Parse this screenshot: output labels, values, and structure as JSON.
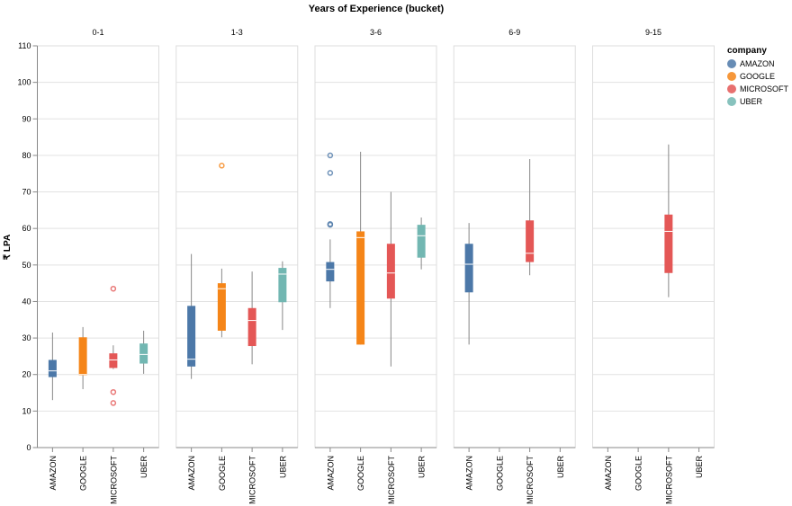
{
  "chart_data": {
    "type": "boxplot",
    "title": "Years of Experience (bucket)",
    "ylabel": "₹ LPA",
    "ylim": [
      0,
      110
    ],
    "yticks": [
      0,
      10,
      20,
      30,
      40,
      50,
      60,
      70,
      80,
      90,
      100,
      110
    ],
    "grid": true,
    "categories": [
      "AMAZON",
      "GOOGLE",
      "MICROSOFT",
      "UBER"
    ],
    "legend": {
      "title": "company",
      "placement": "right",
      "items": [
        {
          "name": "AMAZON",
          "color": "#4c78a8"
        },
        {
          "name": "GOOGLE",
          "color": "#f58518"
        },
        {
          "name": "MICROSOFT",
          "color": "#e45756"
        },
        {
          "name": "UBER",
          "color": "#72b7b2"
        }
      ]
    },
    "facets": [
      {
        "label": "0-1",
        "boxes": [
          {
            "company": "AMAZON",
            "min": 13,
            "q1": 19.3,
            "median": 21,
            "q3": 24,
            "max": 31.5,
            "outliers": []
          },
          {
            "company": "GOOGLE",
            "min": 16,
            "q1": 19.8,
            "median": 20,
            "q3": 30.2,
            "max": 33,
            "outliers": []
          },
          {
            "company": "MICROSOFT",
            "min": 21.5,
            "q1": 21.8,
            "median": 24,
            "q3": 25.8,
            "max": 28,
            "outliers": [
              43.5,
              15.2,
              12.2
            ]
          },
          {
            "company": "UBER",
            "min": 20.2,
            "q1": 23,
            "median": 25.5,
            "q3": 28.5,
            "max": 32,
            "outliers": []
          }
        ]
      },
      {
        "label": "1-3",
        "boxes": [
          {
            "company": "AMAZON",
            "min": 18.8,
            "q1": 22.2,
            "median": 24.2,
            "q3": 38.8,
            "max": 53,
            "outliers": []
          },
          {
            "company": "GOOGLE",
            "min": 30.2,
            "q1": 32,
            "median": 43.5,
            "q3": 45,
            "max": 49,
            "outliers": [
              77.2
            ]
          },
          {
            "company": "MICROSOFT",
            "min": 22.8,
            "q1": 27.8,
            "median": 34.8,
            "q3": 38.2,
            "max": 48.2,
            "outliers": []
          },
          {
            "company": "UBER",
            "min": 32.2,
            "q1": 39.8,
            "median": 47.5,
            "q3": 49.2,
            "max": 51,
            "outliers": []
          }
        ]
      },
      {
        "label": "3-6",
        "boxes": [
          {
            "company": "AMAZON",
            "min": 38.2,
            "q1": 45.5,
            "median": 48.8,
            "q3": 50.8,
            "max": 57,
            "outliers": [
              80,
              75.2,
              61.2,
              61
            ]
          },
          {
            "company": "GOOGLE",
            "min": 28.2,
            "q1": 28.2,
            "median": 57.5,
            "q3": 59.2,
            "max": 81,
            "outliers": []
          },
          {
            "company": "MICROSOFT",
            "min": 22.2,
            "q1": 40.8,
            "median": 47.8,
            "q3": 55.8,
            "max": 70,
            "outliers": []
          },
          {
            "company": "UBER",
            "min": 48.8,
            "q1": 52,
            "median": 58,
            "q3": 61,
            "max": 63,
            "outliers": []
          }
        ]
      },
      {
        "label": "6-9",
        "boxes": [
          {
            "company": "AMAZON",
            "min": 28.2,
            "q1": 42.5,
            "median": 50.2,
            "q3": 55.8,
            "max": 61.5,
            "outliers": []
          },
          {
            "company": "MICROSOFT",
            "min": 47.2,
            "q1": 50.8,
            "median": 53.2,
            "q3": 62.2,
            "max": 79,
            "outliers": []
          }
        ]
      },
      {
        "label": "9-15",
        "boxes": [
          {
            "company": "MICROSOFT",
            "min": 41.2,
            "q1": 47.8,
            "median": 59.2,
            "q3": 63.8,
            "max": 83,
            "outliers": []
          }
        ]
      }
    ]
  }
}
